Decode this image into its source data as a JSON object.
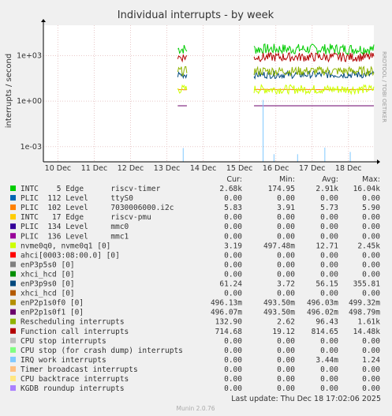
{
  "chart_data": {
    "type": "line",
    "title": "Individual interrupts - by week",
    "ylabel": "interrupts / second",
    "side_label": "RRDTOOL / TOBI OETIKER",
    "y_scale": "log",
    "ylim": [
      0.0001,
      100000
    ],
    "y_ticks": [
      {
        "value": 1000,
        "label": "1e+03"
      },
      {
        "value": 1,
        "label": "1e+00"
      },
      {
        "value": 0.001,
        "label": "1e-03"
      }
    ],
    "x_range_days": [
      "10 Dec",
      "18.7 Dec"
    ],
    "x_ticks": [
      "10 Dec",
      "11 Dec",
      "12 Dec",
      "13 Dec",
      "14 Dec",
      "15 Dec",
      "16 Dec",
      "17 Dec",
      "18 Dec"
    ],
    "x_tick_values": [
      10,
      11,
      12,
      13,
      14,
      15,
      16,
      17,
      18
    ],
    "x_min": 9.6,
    "x_max": 18.7,
    "gap": [
      13.55,
      15.4
    ],
    "segments": [
      [
        13.3,
        13.55
      ],
      [
        15.4,
        18.7
      ]
    ],
    "columns": [
      "Cur:",
      "Min:",
      "Avg:",
      "Max:"
    ],
    "series": [
      {
        "name": "INTC    5 Edge      riscv-timer",
        "color": "#00cc00",
        "cur": "2.68k",
        "min": "174.95",
        "avg": "2.91k",
        "max": "16.04k",
        "level": 2700,
        "noise": 0.35
      },
      {
        "name": "PLIC  112 Level     ttyS0",
        "color": "#0066b3",
        "cur": "0.00",
        "min": "0.00",
        "avg": "0.00",
        "max": "0.00",
        "level": 0,
        "noise": 0
      },
      {
        "name": "PLIC  102 Level     7030006000.i2c",
        "color": "#ff8000",
        "cur": "5.83",
        "min": "3.91",
        "avg": "5.73",
        "max": "5.90",
        "level": 5.8,
        "noise": 0.02
      },
      {
        "name": "INTC   17 Edge      riscv-pmu",
        "color": "#ffcc00",
        "cur": "0.00",
        "min": "0.00",
        "avg": "0.00",
        "max": "0.00",
        "level": 0,
        "noise": 0
      },
      {
        "name": "PLIC  134 Level     mmc0",
        "color": "#330099",
        "cur": "0.00",
        "min": "0.00",
        "avg": "0.00",
        "max": "0.00",
        "level": 0,
        "noise": 0
      },
      {
        "name": "PLIC  136 Level     mmc1",
        "color": "#990099",
        "cur": "0.00",
        "min": "0.00",
        "avg": "0.00",
        "max": "0.00",
        "level": 0,
        "noise": 0
      },
      {
        "name": "nvme0q0, nvme0q1 [0]",
        "color": "#ccff00",
        "cur": "3.19",
        "min": "497.48m",
        "avg": "12.71",
        "max": "2.45k",
        "level": 6,
        "noise": 0.3
      },
      {
        "name": "ahci[0003:08:00.0] [0]",
        "color": "#ff0000",
        "cur": "0.00",
        "min": "0.00",
        "avg": "0.00",
        "max": "0.00",
        "level": 0,
        "noise": 0
      },
      {
        "name": "enP3p5s0 [0]",
        "color": "#808080",
        "cur": "0.00",
        "min": "0.00",
        "avg": "0.00",
        "max": "0.00",
        "level": 0,
        "noise": 0
      },
      {
        "name": "xhci_hcd [0]",
        "color": "#008f00",
        "cur": "0.00",
        "min": "0.00",
        "avg": "0.00",
        "max": "0.00",
        "level": 0,
        "noise": 0
      },
      {
        "name": "enP3p9s0 [0]",
        "color": "#00487d",
        "cur": "61.24",
        "min": "3.72",
        "avg": "56.15",
        "max": "355.81",
        "level": 56,
        "noise": 0.25
      },
      {
        "name": "xhci_hcd [0]",
        "color": "#b35a00",
        "cur": "0.00",
        "min": "0.00",
        "avg": "0.00",
        "max": "0.00",
        "level": 0,
        "noise": 0
      },
      {
        "name": "enP2p1s0f0 [0]",
        "color": "#b38f00",
        "cur": "496.13m",
        "min": "493.50m",
        "avg": "496.03m",
        "max": "499.32m",
        "level": 0.496,
        "noise": 0
      },
      {
        "name": "enP2p1s0f1 [0]",
        "color": "#6b006b",
        "cur": "496.07m",
        "min": "493.50m",
        "avg": "496.02m",
        "max": "498.79m",
        "level": 0.496,
        "noise": 0
      },
      {
        "name": "Rescheduling interrupts",
        "color": "#8fb300",
        "cur": "132.90",
        "min": "2.62",
        "avg": "96.43",
        "max": "1.61k",
        "level": 96,
        "noise": 0.3
      },
      {
        "name": "Function call interrupts",
        "color": "#b30000",
        "cur": "714.68",
        "min": "19.12",
        "avg": "814.65",
        "max": "14.48k",
        "level": 800,
        "noise": 0.3
      },
      {
        "name": "CPU stop interrupts",
        "color": "#bebebe",
        "cur": "0.00",
        "min": "0.00",
        "avg": "0.00",
        "max": "0.00",
        "level": 0,
        "noise": 0
      },
      {
        "name": "CPU stop (for crash dump) interrupts",
        "color": "#80ff80",
        "cur": "0.00",
        "min": "0.00",
        "avg": "0.00",
        "max": "0.00",
        "level": 0,
        "noise": 0
      },
      {
        "name": "IRQ work interrupts",
        "color": "#80c9ff",
        "cur": "0.00",
        "min": "0.00",
        "avg": "3.44m",
        "max": "1.24",
        "level": 0,
        "noise": 0,
        "spiky": true
      },
      {
        "name": "Timer broadcast interrupts",
        "color": "#ffc080",
        "cur": "0.00",
        "min": "0.00",
        "avg": "0.00",
        "max": "0.00",
        "level": 0,
        "noise": 0
      },
      {
        "name": "CPU backtrace interrupts",
        "color": "#ffe680",
        "cur": "0.00",
        "min": "0.00",
        "avg": "0.00",
        "max": "0.00",
        "level": 0,
        "noise": 0
      },
      {
        "name": "KGDB roundup interrupts",
        "color": "#aa80ff",
        "cur": "0.00",
        "min": "0.00",
        "avg": "0.00",
        "max": "0.00",
        "level": 0,
        "noise": 0
      }
    ],
    "last_update": "Last update:  Thu Dec 18 17:02:06 2025",
    "footer": "Munin 2.0.76"
  }
}
